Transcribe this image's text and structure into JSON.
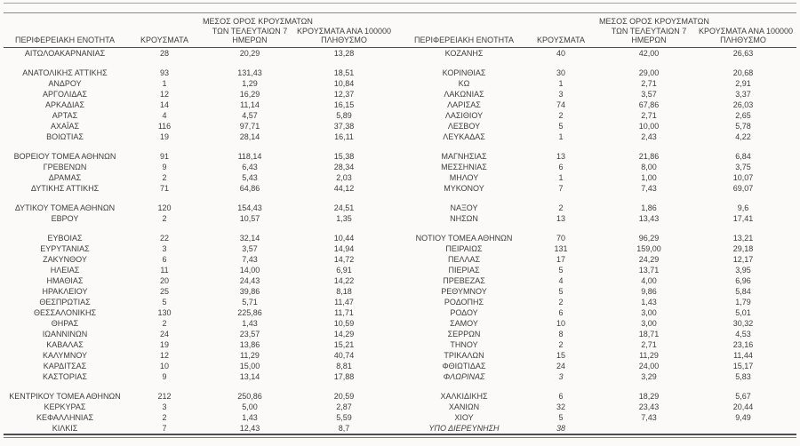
{
  "table": {
    "headers": {
      "region": "ΠΕΡΙΦΕΡΕΙΑΚΗ ΕΝΟΤΗΤΑ",
      "cases": "ΚΡΟΥΣΜΑΤΑ",
      "avg7": [
        "ΜΕΣΟΣ ΟΡΟΣ ΚΡΟΥΣΜΑΤΩΝ",
        "ΤΩΝ ΤΕΛΕΥΤΑΙΩΝ 7",
        "ΗΜΕΡΩΝ"
      ],
      "per100k": [
        "ΚΡΟΥΣΜΑΤΑ ΑΝΑ 100000",
        "ΠΛΗΘΥΣΜΟ"
      ]
    },
    "rows": [
      {
        "l": [
          "ΑΙΤΩΛΟΑΚΑΡΝΑΝΙΑΣ",
          "28",
          "20,29",
          "13,28"
        ],
        "r": [
          "ΚΟΖΑΝΗΣ",
          "40",
          "42,00",
          "26,63"
        ]
      },
      {
        "spacer": true
      },
      {
        "l": [
          "ΑΝΑΤΟΛΙΚΗΣ ΑΤΤΙΚΗΣ",
          "93",
          "131,43",
          "18,51"
        ],
        "r": [
          "ΚΟΡΙΝΘΙΑΣ",
          "30",
          "29,00",
          "20,68"
        ]
      },
      {
        "l": [
          "ΑΝΔΡΟΥ",
          "1",
          "1,29",
          "10,84"
        ],
        "r": [
          "ΚΩ",
          "1",
          "2,71",
          "2,91"
        ]
      },
      {
        "l": [
          "ΑΡΓΟΛΙΔΑΣ",
          "12",
          "16,29",
          "12,37"
        ],
        "r": [
          "ΛΑΚΩΝΙΑΣ",
          "3",
          "3,57",
          "3,37"
        ]
      },
      {
        "l": [
          "ΑΡΚΑΔΙΑΣ",
          "14",
          "11,14",
          "16,15"
        ],
        "r": [
          "ΛΑΡΙΣΑΣ",
          "74",
          "67,86",
          "26,03"
        ]
      },
      {
        "l": [
          "ΑΡΤΑΣ",
          "4",
          "4,57",
          "5,89"
        ],
        "r": [
          "ΛΑΣΙΘΙΟΥ",
          "2",
          "2,71",
          "2,65"
        ]
      },
      {
        "l": [
          "ΑΧΑΪΑΣ",
          "116",
          "97,71",
          "37,38"
        ],
        "r": [
          "ΛΕΣΒΟΥ",
          "5",
          "10,00",
          "5,78"
        ]
      },
      {
        "l": [
          "ΒΟΙΩΤΙΑΣ",
          "19",
          "28,14",
          "16,11"
        ],
        "r": [
          "ΛΕΥΚΑΔΑΣ",
          "1",
          "2,43",
          "4,22"
        ]
      },
      {
        "spacer": true
      },
      {
        "l": [
          "ΒΟΡΕΙΟΥ ΤΟΜΕΑ ΑΘΗΝΩΝ",
          "91",
          "118,14",
          "15,38"
        ],
        "r": [
          "ΜΑΓΝΗΣΙΑΣ",
          "13",
          "21,86",
          "6,84"
        ]
      },
      {
        "l": [
          "ΓΡΕΒΕΝΩΝ",
          "9",
          "6,43",
          "28,34"
        ],
        "r": [
          "ΜΕΣΣΗΝΙΑΣ",
          "6",
          "8,00",
          "3,75"
        ]
      },
      {
        "l": [
          "ΔΡΑΜΑΣ",
          "2",
          "5,43",
          "2,03"
        ],
        "r": [
          "ΜΗΛΟΥ",
          "1",
          "1,00",
          "10,07"
        ]
      },
      {
        "l": [
          "ΔΥΤΙΚΗΣ ΑΤΤΙΚΗΣ",
          "71",
          "64,86",
          "44,12"
        ],
        "r": [
          "ΜΥΚΟΝΟΥ",
          "7",
          "7,43",
          "69,07"
        ]
      },
      {
        "spacer": true
      },
      {
        "l": [
          "ΔΥΤΙΚΟΥ ΤΟΜΕΑ ΑΘΗΝΩΝ",
          "120",
          "154,43",
          "24,51"
        ],
        "r": [
          "ΝΑΞΟΥ",
          "2",
          "1,86",
          "9,6"
        ]
      },
      {
        "l": [
          "ΕΒΡΟΥ",
          "2",
          "10,57",
          "1,35"
        ],
        "r": [
          "ΝΗΣΩΝ",
          "13",
          "13,43",
          "17,41"
        ]
      },
      {
        "spacer": true
      },
      {
        "l": [
          "ΕΥΒΟΙΑΣ",
          "22",
          "32,14",
          "10,44"
        ],
        "r": [
          "ΝΟΤΙΟΥ ΤΟΜΕΑ ΑΘΗΝΩΝ",
          "70",
          "96,29",
          "13,21"
        ]
      },
      {
        "l": [
          "ΕΥΡΥΤΑΝΙΑΣ",
          "3",
          "3,57",
          "14,94"
        ],
        "r": [
          "ΠΕΙΡΑΙΩΣ",
          "131",
          "159,00",
          "29,18"
        ]
      },
      {
        "l": [
          "ΖΑΚΥΝΘΟΥ",
          "6",
          "7,43",
          "14,72"
        ],
        "r": [
          "ΠΕΛΛΑΣ",
          "17",
          "24,29",
          "12,17"
        ]
      },
      {
        "l": [
          "ΗΛΕΙΑΣ",
          "11",
          "14,00",
          "6,91"
        ],
        "r": [
          "ΠΙΕΡΙΑΣ",
          "5",
          "13,71",
          "3,95"
        ]
      },
      {
        "l": [
          "ΗΜΑΘΙΑΣ",
          "20",
          "24,43",
          "14,22"
        ],
        "r": [
          "ΠΡΕΒΕΖΑΣ",
          "4",
          "4,00",
          "6,96"
        ]
      },
      {
        "l": [
          "ΗΡΑΚΛΕΙΟΥ",
          "25",
          "39,86",
          "8,18"
        ],
        "r": [
          "ΡΕΘΥΜΝΟΥ",
          "5",
          "9,86",
          "5,84"
        ]
      },
      {
        "l": [
          "ΘΕΣΠΡΩΤΙΑΣ",
          "5",
          "5,71",
          "11,47"
        ],
        "r": [
          "ΡΟΔΟΠΗΣ",
          "2",
          "1,43",
          "1,79"
        ]
      },
      {
        "l": [
          "ΘΕΣΣΑΛΟΝΙΚΗΣ",
          "130",
          "225,86",
          "11,71"
        ],
        "r": [
          "ΡΟΔΟΥ",
          "6",
          "3,00",
          "5,01"
        ]
      },
      {
        "l": [
          "ΘΗΡΑΣ",
          "2",
          "1,43",
          "10,59"
        ],
        "r": [
          "ΣΑΜΟΥ",
          "10",
          "3,00",
          "30,32"
        ]
      },
      {
        "l": [
          "ΙΩΑΝΝΙΝΩΝ",
          "24",
          "23,57",
          "14,29"
        ],
        "r": [
          "ΣΕΡΡΩΝ",
          "8",
          "18,71",
          "4,53"
        ]
      },
      {
        "l": [
          "ΚΑΒΑΛΑΣ",
          "19",
          "13,86",
          "15,21"
        ],
        "r": [
          "ΤΗΝΟΥ",
          "2",
          "2,71",
          "23,16"
        ]
      },
      {
        "l": [
          "ΚΑΛΥΜΝΟΥ",
          "12",
          "11,29",
          "40,74"
        ],
        "r": [
          "ΤΡΙΚΑΛΩΝ",
          "15",
          "11,29",
          "11,44"
        ]
      },
      {
        "l": [
          "ΚΑΡΔΙΤΣΑΣ",
          "10",
          "15,00",
          "8,81"
        ],
        "r": [
          "ΦΘΙΩΤΙΔΑΣ",
          "24",
          "24,00",
          "15,17"
        ]
      },
      {
        "l": [
          "ΚΑΣΤΟΡΙΑΣ",
          "9",
          "13,14",
          "17,88"
        ],
        "r": [
          "ΦΛΩΡΙΝΑΣ",
          "3",
          "3,29",
          "5,83"
        ],
        "ri": true
      },
      {
        "spacer": true
      },
      {
        "l": [
          "ΚΕΝΤΡΙΚΟΥ ΤΟΜΕΑ ΑΘΗΝΩΝ",
          "212",
          "250,86",
          "20,59"
        ],
        "r": [
          "ΧΑΛΚΙΔΙΚΗΣ",
          "6",
          "18,29",
          "5,67"
        ]
      },
      {
        "l": [
          "ΚΕΡΚΥΡΑΣ",
          "3",
          "5,00",
          "2,87"
        ],
        "r": [
          "ΧΑΝΙΩΝ",
          "32",
          "23,43",
          "20,44"
        ]
      },
      {
        "l": [
          "ΚΕΦΑΛΛΗΝΙΑΣ",
          "2",
          "1,43",
          "5,59"
        ],
        "r": [
          "ΧΙΟΥ",
          "5",
          "7,43",
          "9,49"
        ]
      },
      {
        "l": [
          "ΚΙΛΚΙΣ",
          "7",
          "12,43",
          "8,7"
        ],
        "r": [
          "ΥΠΟ ΔΙΕΡΕΥΝΗΣΗ",
          "38",
          "",
          ""
        ],
        "ri": true
      }
    ]
  }
}
